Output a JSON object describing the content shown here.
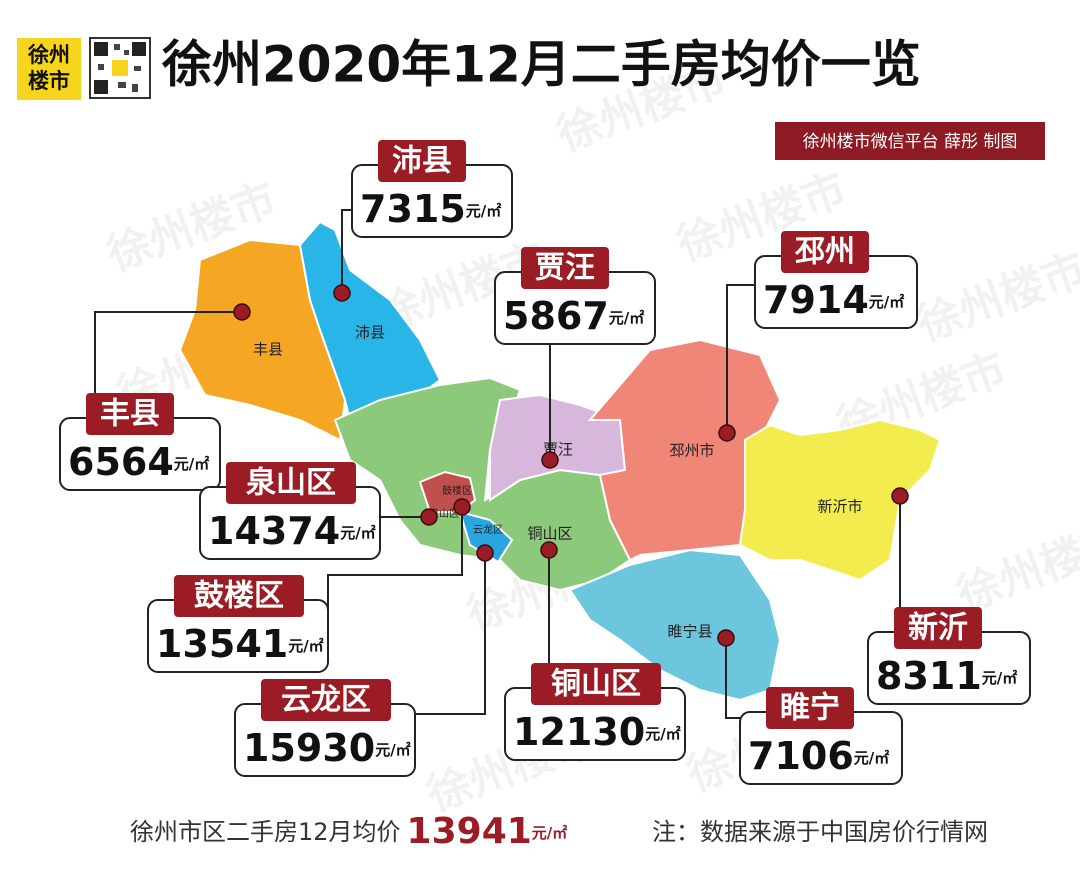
{
  "header": {
    "logo": [
      "徐州",
      "楼市"
    ],
    "title": "徐州2020年12月二手房均价一览",
    "credit": "徐州楼市微信平台 薛彤 制图"
  },
  "watermark": "徐州楼市",
  "unit": "元/㎡",
  "districts": [
    {
      "name": "沛县",
      "price": 7315
    },
    {
      "name": "贾汪",
      "price": 5867
    },
    {
      "name": "邳州",
      "price": 7914
    },
    {
      "name": "丰县",
      "price": 6564
    },
    {
      "name": "泉山区",
      "price": 14374
    },
    {
      "name": "鼓楼区",
      "price": 13541
    },
    {
      "name": "云龙区",
      "price": 15930
    },
    {
      "name": "铜山区",
      "price": 12130
    },
    {
      "name": "睢宁",
      "price": 7106
    },
    {
      "name": "新沂",
      "price": 8311
    }
  ],
  "map_labels": [
    "丰县",
    "沛县",
    "贾汪",
    "邳州市",
    "新沂市",
    "睢宁县",
    "铜山区",
    "鼓楼区",
    "泉山区",
    "云龙区"
  ],
  "footer": {
    "label": "徐州市区二手房12月均价",
    "price": 13941,
    "note": "注：数据来源于中国房价行情网"
  }
}
